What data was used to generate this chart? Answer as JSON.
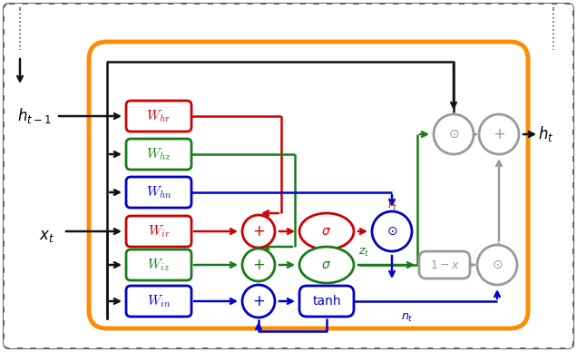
{
  "figsize": [
    6.36,
    3.88
  ],
  "dpi": 100,
  "colors": {
    "red": "#CC0000",
    "green": "#1a7a1a",
    "blue": "#0000CC",
    "gray": "#999999",
    "black": "#111111",
    "orange": "#FF8C00"
  }
}
